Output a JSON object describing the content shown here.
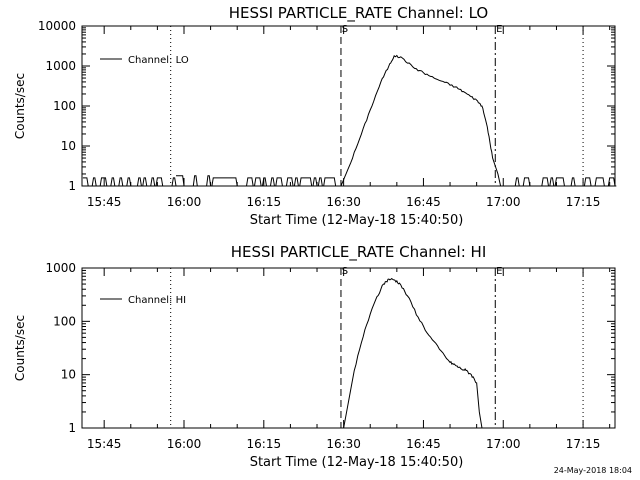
{
  "footer": {
    "timestamp": "24-May-2018 18:04"
  },
  "chart_data": [
    {
      "type": "line",
      "title": "HESSI PARTICLE_RATE Channel: LO",
      "xlabel": "Start Time (12-May-18 15:40:50)",
      "ylabel": "Counts/sec",
      "y_scale": "log",
      "ylim": [
        1,
        10000
      ],
      "y_ticks": [
        "1",
        "10",
        "100",
        "1000",
        "10000"
      ],
      "x_range": [
        "15:40:50",
        "17:21:00"
      ],
      "x_ticks": [
        "15:45",
        "16:00",
        "16:15",
        "16:30",
        "16:45",
        "17:00",
        "17:15"
      ],
      "legend": {
        "position": "top-left",
        "entries": [
          "Channel: LO"
        ]
      },
      "markers": [
        {
          "time": "15:57:30",
          "style": "dotted",
          "label": ""
        },
        {
          "time": "16:29:30",
          "style": "dashed",
          "label": "S"
        },
        {
          "time": "16:58:30",
          "style": "dash-dot",
          "label": "E"
        },
        {
          "time": "17:15:00",
          "style": "dotted",
          "label": ""
        }
      ],
      "series": [
        {
          "name": "Channel: LO",
          "noise_segments": [
            {
              "start": "15:41:00",
              "end": "15:58:30",
              "level": 1.6
            },
            {
              "start": "15:58:30",
              "end": "16:05:00",
              "level": 1.8
            },
            {
              "start": "16:05:00",
              "end": "16:29:30",
              "level": 1.6
            },
            {
              "start": "16:59:30",
              "end": "17:21:00",
              "level": 1.6
            }
          ],
          "x": [
            "16:29:30",
            "16:31:00",
            "16:33:00",
            "16:35:00",
            "16:37:00",
            "16:38:30",
            "16:39:30",
            "16:41:00",
            "16:43:00",
            "16:45:00",
            "16:47:00",
            "16:49:00",
            "16:51:00",
            "16:52:30",
            "16:54:00",
            "16:55:00",
            "16:56:00",
            "16:57:00",
            "16:58:00",
            "16:59:00",
            "16:59:30"
          ],
          "y": [
            1,
            3,
            15,
            80,
            400,
            1000,
            1800,
            1600,
            950,
            680,
            500,
            390,
            300,
            230,
            170,
            140,
            100,
            30,
            5,
            2,
            1
          ]
        }
      ]
    },
    {
      "type": "line",
      "title": "HESSI PARTICLE_RATE Channel: HI",
      "xlabel": "Start Time (12-May-18 15:40:50)",
      "ylabel": "Counts/sec",
      "y_scale": "log",
      "ylim": [
        1,
        1000
      ],
      "y_ticks": [
        "1",
        "10",
        "100",
        "1000"
      ],
      "x_range": [
        "15:40:50",
        "17:21:00"
      ],
      "x_ticks": [
        "15:45",
        "16:00",
        "16:15",
        "16:30",
        "16:45",
        "17:00",
        "17:15"
      ],
      "legend": {
        "position": "top-left",
        "entries": [
          "Channel: HI"
        ]
      },
      "markers": [
        {
          "time": "15:57:30",
          "style": "dotted",
          "label": ""
        },
        {
          "time": "16:29:30",
          "style": "dashed",
          "label": "S"
        },
        {
          "time": "16:58:30",
          "style": "dash-dot",
          "label": "E"
        },
        {
          "time": "17:15:00",
          "style": "dotted",
          "label": ""
        }
      ],
      "series": [
        {
          "name": "Channel: HI",
          "x": [
            "16:30:00",
            "16:32:00",
            "16:34:00",
            "16:36:00",
            "16:37:30",
            "16:38:30",
            "16:39:30",
            "16:40:30",
            "16:42:00",
            "16:44:00",
            "16:46:00",
            "16:48:00",
            "16:50:00",
            "16:51:00",
            "16:52:00",
            "16:53:00",
            "16:54:00",
            "16:55:00",
            "16:55:30",
            "16:56:00"
          ],
          "y": [
            1,
            12,
            70,
            250,
            500,
            620,
            600,
            520,
            300,
            120,
            55,
            30,
            17,
            15,
            13,
            12,
            10,
            7,
            2,
            1
          ]
        }
      ]
    }
  ]
}
